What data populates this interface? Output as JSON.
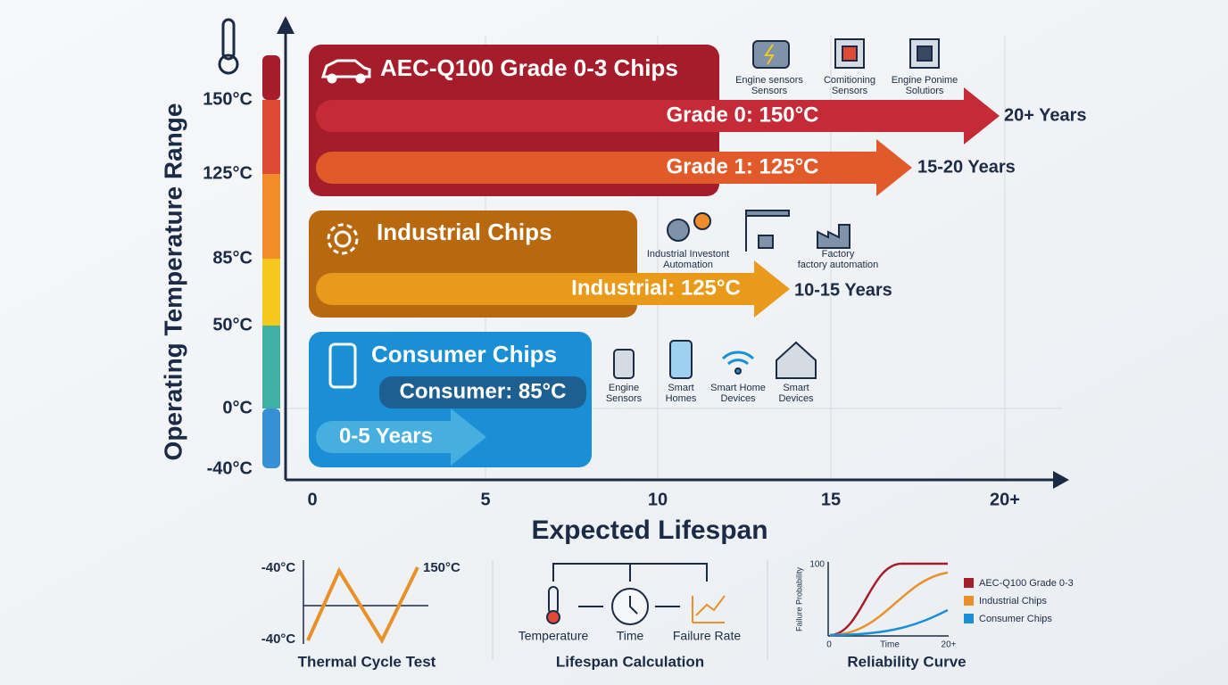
{
  "y_axis": {
    "title": "Operating Temperature Range",
    "ticks": [
      "150°C",
      "125°C",
      "85°C",
      "50°C",
      "0°C",
      "-40°C"
    ]
  },
  "x_axis": {
    "title": "Expected Lifespan",
    "ticks": [
      "0",
      "5",
      "10",
      "15",
      "20+"
    ]
  },
  "automotive": {
    "title": "AEC-Q100 Grade 0-3 Chips",
    "arrows": [
      {
        "label": "Grade 0: 150°C",
        "lifespan": "20+ Years"
      },
      {
        "label": "Grade 1: 125°C",
        "lifespan": "15-20 Years"
      }
    ],
    "icons": [
      [
        "Engine sensors",
        "Sensors"
      ],
      [
        "Comitioning",
        "Sensors"
      ],
      [
        "Engine Ponime",
        "Solutiors"
      ]
    ]
  },
  "industrial": {
    "title": "Industrial Chips",
    "arrow": {
      "label": "Industrial: 125°C",
      "lifespan": "10-15 Years"
    },
    "icons": [
      [
        "Industrial Investont",
        "Automation"
      ],
      [
        "Factory",
        "factory automation"
      ]
    ]
  },
  "consumer": {
    "title": "Consumer Chips",
    "badge": "Consumer: 85°C",
    "arrow": "0-5 Years",
    "icons": [
      [
        "Engine",
        "Sensors"
      ],
      [
        "Smart",
        "Homes"
      ],
      [
        "Smart Home",
        "Devices"
      ],
      [
        "Smart",
        "Devices"
      ]
    ]
  },
  "thermal_cycle": {
    "title": "Thermal Cycle Test",
    "labels": [
      "-40°C",
      "150°C",
      "-40°C"
    ]
  },
  "lifespan_calculation": {
    "title": "Lifespan Calculation",
    "steps": [
      "Temperature",
      "Time",
      "Failure Rate"
    ]
  },
  "reliability_curve": {
    "title": "Reliability Curve",
    "y_label": "Failure Probability",
    "y_ticks": [
      "100",
      "0"
    ],
    "x_ticks": [
      "0",
      "Time",
      "20+"
    ],
    "legend": [
      "AEC-Q100 Grade 0-3",
      "Industrial Chips",
      "Consumer Chips"
    ]
  }
}
